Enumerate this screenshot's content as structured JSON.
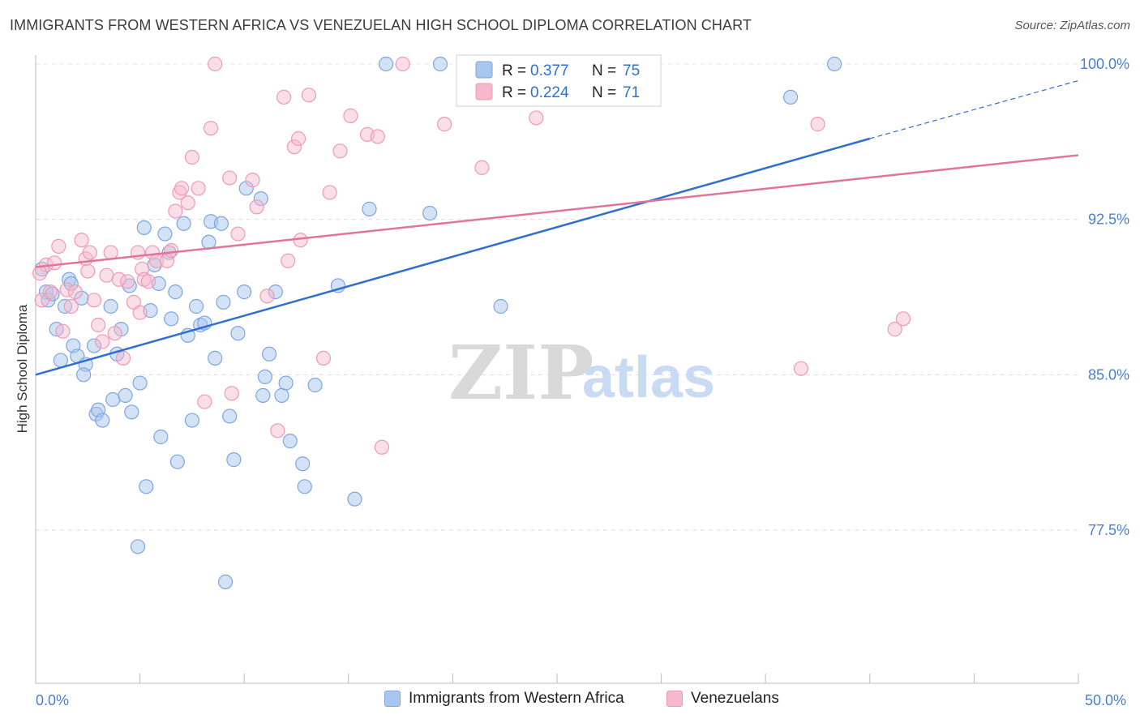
{
  "title": "IMMIGRANTS FROM WESTERN AFRICA VS VENEZUELAN HIGH SCHOOL DIPLOMA CORRELATION CHART",
  "source": "Source: ZipAtlas.com",
  "watermark": {
    "zip": "ZIP",
    "atlas": "atlas"
  },
  "legend": {
    "r_label": "R =",
    "n_label": "N =",
    "series1": {
      "r": "0.377",
      "n": "75"
    },
    "series2": {
      "r": "0.224",
      "n": "71"
    }
  },
  "bottom_legend": {
    "series1": "Immigrants from Western Africa",
    "series2": "Venezuelans"
  },
  "colors": {
    "blue_fill": "#a9c6ee",
    "blue_stroke": "#7da6e0",
    "blue_line": "#2f6fcf",
    "pink_fill": "#f6b8cb",
    "pink_stroke": "#ef9ab4",
    "pink_line": "#e2739b",
    "tick_label": "#4a7fd0",
    "grid": "#dddddd"
  },
  "chart_data": {
    "type": "scatter",
    "title": "IMMIGRANTS FROM WESTERN AFRICA VS VENEZUELAN HIGH SCHOOL DIPLOMA CORRELATION CHART",
    "xlabel": "",
    "ylabel": "High School Diploma",
    "xlim": [
      0,
      50
    ],
    "ylim": [
      70.0,
      101.0
    ],
    "x_tick_labels": [
      "0.0%",
      "50.0%"
    ],
    "y_ticks": [
      77.5,
      85.0,
      92.5,
      100.0
    ],
    "y_tick_labels": [
      "77.5%",
      "85.0%",
      "92.5%",
      "100.0%"
    ],
    "grid": true,
    "legend_position": "top-center",
    "series": [
      {
        "name": "Immigrants from Western Africa",
        "color": "#a9c6ee",
        "r": 0.377,
        "n": 75,
        "trend": {
          "x": [
            0,
            40
          ],
          "y": [
            85.0,
            96.4
          ],
          "dashed_to": [
            50,
            99.2
          ]
        },
        "points": [
          [
            0.5,
            89.0
          ],
          [
            0.6,
            88.6
          ],
          [
            0.8,
            88.9
          ],
          [
            1.0,
            87.2
          ],
          [
            1.2,
            85.7
          ],
          [
            1.4,
            88.3
          ],
          [
            1.6,
            89.6
          ],
          [
            1.7,
            89.4
          ],
          [
            1.8,
            86.4
          ],
          [
            2.0,
            85.9
          ],
          [
            2.2,
            88.7
          ],
          [
            2.4,
            85.5
          ],
          [
            2.3,
            85.0
          ],
          [
            2.8,
            86.4
          ],
          [
            2.9,
            83.1
          ],
          [
            3.0,
            83.3
          ],
          [
            3.2,
            82.8
          ],
          [
            3.6,
            88.3
          ],
          [
            3.7,
            83.8
          ],
          [
            3.9,
            86.0
          ],
          [
            4.1,
            87.2
          ],
          [
            4.3,
            84.0
          ],
          [
            4.5,
            89.3
          ],
          [
            4.6,
            83.2
          ],
          [
            5.0,
            84.6
          ],
          [
            5.2,
            92.1
          ],
          [
            5.3,
            79.6
          ],
          [
            5.5,
            88.1
          ],
          [
            5.7,
            90.3
          ],
          [
            5.9,
            89.4
          ],
          [
            6.0,
            82.0
          ],
          [
            6.2,
            91.8
          ],
          [
            6.4,
            90.9
          ],
          [
            6.5,
            87.7
          ],
          [
            6.7,
            89.0
          ],
          [
            6.8,
            80.8
          ],
          [
            7.1,
            92.3
          ],
          [
            7.3,
            86.9
          ],
          [
            7.5,
            82.8
          ],
          [
            7.7,
            88.3
          ],
          [
            7.9,
            87.4
          ],
          [
            8.1,
            87.5
          ],
          [
            8.3,
            91.4
          ],
          [
            8.4,
            92.4
          ],
          [
            8.6,
            85.8
          ],
          [
            8.9,
            92.3
          ],
          [
            9.0,
            88.5
          ],
          [
            9.1,
            75.0
          ],
          [
            9.3,
            83.0
          ],
          [
            9.5,
            80.9
          ],
          [
            9.7,
            87.0
          ],
          [
            10.0,
            89.0
          ],
          [
            10.1,
            94.0
          ],
          [
            10.8,
            93.5
          ],
          [
            10.9,
            84.0
          ],
          [
            11.0,
            84.9
          ],
          [
            11.2,
            86.0
          ],
          [
            11.5,
            89.0
          ],
          [
            11.8,
            84.0
          ],
          [
            12.0,
            84.6
          ],
          [
            12.2,
            81.8
          ],
          [
            12.8,
            80.7
          ],
          [
            12.9,
            79.6
          ],
          [
            13.4,
            84.5
          ],
          [
            14.5,
            89.3
          ],
          [
            15.3,
            79.0
          ],
          [
            16.0,
            93.0
          ],
          [
            16.8,
            100.0
          ],
          [
            18.9,
            92.8
          ],
          [
            19.4,
            100.0
          ],
          [
            22.3,
            88.3
          ],
          [
            36.2,
            98.4
          ],
          [
            38.3,
            100.0
          ],
          [
            0.3,
            90.1
          ],
          [
            4.9,
            76.7
          ]
        ]
      },
      {
        "name": "Venezuelans",
        "color": "#f6b8cb",
        "r": 0.224,
        "n": 71,
        "trend": {
          "x": [
            0,
            50
          ],
          "y": [
            90.2,
            95.6
          ]
        },
        "points": [
          [
            0.3,
            88.6
          ],
          [
            0.5,
            90.3
          ],
          [
            0.7,
            89.0
          ],
          [
            0.9,
            90.4
          ],
          [
            1.1,
            91.2
          ],
          [
            1.3,
            87.1
          ],
          [
            1.5,
            89.1
          ],
          [
            1.7,
            88.3
          ],
          [
            1.9,
            89.0
          ],
          [
            2.2,
            91.5
          ],
          [
            2.4,
            90.6
          ],
          [
            2.6,
            90.9
          ],
          [
            2.8,
            88.6
          ],
          [
            3.0,
            87.4
          ],
          [
            3.2,
            86.6
          ],
          [
            3.4,
            89.8
          ],
          [
            3.6,
            90.9
          ],
          [
            3.8,
            87.0
          ],
          [
            4.0,
            89.6
          ],
          [
            4.2,
            85.8
          ],
          [
            4.4,
            89.5
          ],
          [
            4.7,
            88.5
          ],
          [
            4.9,
            90.9
          ],
          [
            5.1,
            90.1
          ],
          [
            5.2,
            89.6
          ],
          [
            5.4,
            89.5
          ],
          [
            5.6,
            90.9
          ],
          [
            5.8,
            90.5
          ],
          [
            6.3,
            90.5
          ],
          [
            6.5,
            91.0
          ],
          [
            6.7,
            92.9
          ],
          [
            6.9,
            93.8
          ],
          [
            7.0,
            94.0
          ],
          [
            7.3,
            93.3
          ],
          [
            7.5,
            95.5
          ],
          [
            7.8,
            94.0
          ],
          [
            8.1,
            83.7
          ],
          [
            8.4,
            96.9
          ],
          [
            8.6,
            100.0
          ],
          [
            9.3,
            94.5
          ],
          [
            9.4,
            84.1
          ],
          [
            9.7,
            91.8
          ],
          [
            10.4,
            94.4
          ],
          [
            10.6,
            93.1
          ],
          [
            11.1,
            88.8
          ],
          [
            11.6,
            82.3
          ],
          [
            11.9,
            98.4
          ],
          [
            12.1,
            90.5
          ],
          [
            12.4,
            96.0
          ],
          [
            12.6,
            96.4
          ],
          [
            12.7,
            91.5
          ],
          [
            13.1,
            98.5
          ],
          [
            13.8,
            85.8
          ],
          [
            14.1,
            93.8
          ],
          [
            14.6,
            95.8
          ],
          [
            15.1,
            97.5
          ],
          [
            15.9,
            96.6
          ],
          [
            16.4,
            96.5
          ],
          [
            16.6,
            81.5
          ],
          [
            17.6,
            100.0
          ],
          [
            19.6,
            97.1
          ],
          [
            21.4,
            95.0
          ],
          [
            24.0,
            97.4
          ],
          [
            24.4,
            99.1
          ],
          [
            36.7,
            85.3
          ],
          [
            37.5,
            97.1
          ],
          [
            41.2,
            87.2
          ],
          [
            41.6,
            87.7
          ],
          [
            2.5,
            90.0
          ],
          [
            0.2,
            89.9
          ],
          [
            5.0,
            88.0
          ]
        ]
      }
    ]
  }
}
